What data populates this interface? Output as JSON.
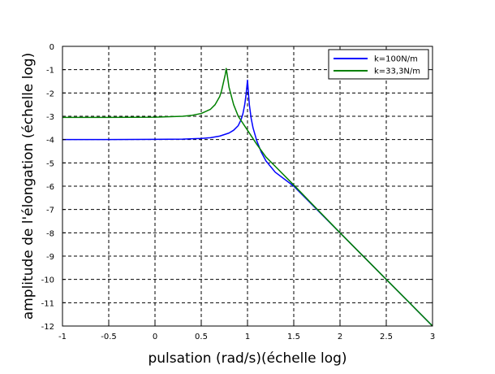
{
  "chart_data": {
    "type": "line",
    "xlabel": "pulsation (rad/s)(échelle log)",
    "ylabel": "amplitude de l'élongation (échelle log)",
    "xlim": [
      -1,
      3
    ],
    "ylim": [
      -12,
      0
    ],
    "xticks": [
      -1,
      -0.5,
      0,
      0.5,
      1,
      1.5,
      2,
      2.5,
      3
    ],
    "xtick_labels": [
      "-1",
      "-0.5",
      "0",
      "0.5",
      "1",
      "1.5",
      "2",
      "2.5",
      "3"
    ],
    "yticks": [
      0,
      -1,
      -2,
      -3,
      -4,
      -5,
      -6,
      -7,
      -8,
      -9,
      -10,
      -11,
      -12
    ],
    "ytick_labels": [
      "0",
      "-1",
      "-2",
      "-3",
      "-4",
      "-5",
      "-6",
      "-7",
      "-8",
      "-9",
      "-10",
      "-11",
      "-12"
    ],
    "grid": true,
    "legend_position": "top-right",
    "series": [
      {
        "name": "k=100N/m",
        "color": "#0000ff",
        "x": [
          -1,
          -0.5,
          0,
          0.3,
          0.5,
          0.6,
          0.7,
          0.8,
          0.85,
          0.9,
          0.93,
          0.95,
          0.97,
          0.985,
          1.0,
          1.01,
          1.02,
          1.04,
          1.06,
          1.1,
          1.15,
          1.2,
          1.3,
          1.5,
          2.0,
          2.5,
          3.0
        ],
        "y": [
          -4.0,
          -4.0,
          -3.99,
          -3.98,
          -3.95,
          -3.92,
          -3.85,
          -3.72,
          -3.6,
          -3.4,
          -3.15,
          -2.9,
          -2.5,
          -2.05,
          -1.45,
          -2.0,
          -2.5,
          -3.1,
          -3.5,
          -4.05,
          -4.55,
          -4.92,
          -5.4,
          -6.0,
          -8.0,
          -10.0,
          -12.0
        ]
      },
      {
        "name": "k=33,3N/m",
        "color": "#008000",
        "x": [
          -1,
          -0.5,
          0,
          0.3,
          0.4,
          0.5,
          0.6,
          0.65,
          0.7,
          0.72,
          0.74,
          0.76,
          0.77,
          0.78,
          0.8,
          0.85,
          0.9,
          1.0,
          1.1,
          1.2,
          1.3,
          1.5,
          2.0,
          2.5,
          3.0
        ],
        "y": [
          -3.05,
          -3.05,
          -3.04,
          -3.0,
          -2.96,
          -2.88,
          -2.7,
          -2.5,
          -2.15,
          -1.9,
          -1.55,
          -1.2,
          -0.95,
          -1.2,
          -1.75,
          -2.5,
          -3.0,
          -3.6,
          -4.2,
          -4.75,
          -5.15,
          -5.95,
          -8.0,
          -10.0,
          -12.0
        ]
      }
    ]
  }
}
